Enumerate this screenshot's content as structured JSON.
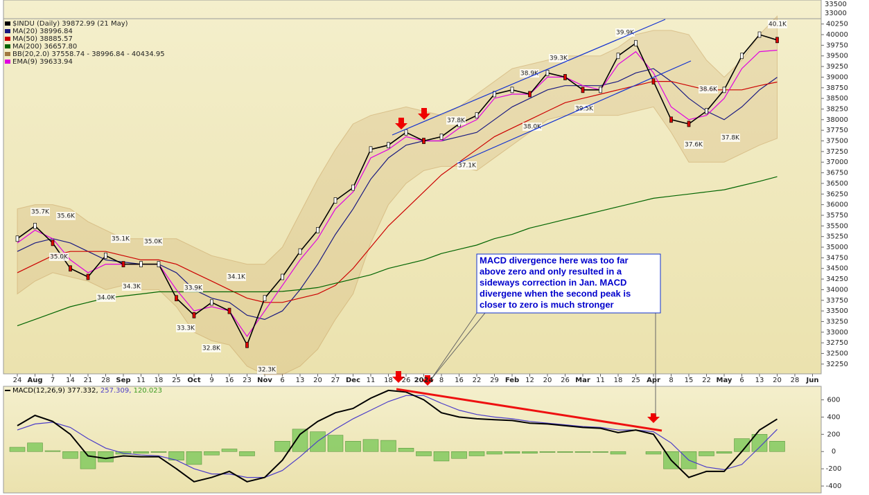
{
  "chart_data": [
    {
      "type": "line",
      "top_panel_yticks": [
        33500,
        33000
      ],
      "categories": [
        "24",
        "Aug",
        "7",
        "14",
        "21",
        "28",
        "Sep",
        "11",
        "18",
        "25",
        "Oct",
        "9",
        "16",
        "23",
        "Nov",
        "6",
        "13",
        "20",
        "27",
        "Dec",
        "11",
        "18",
        "26",
        "2024",
        "8",
        "16",
        "22",
        "29",
        "Feb",
        "12",
        "20",
        "26",
        "Mar",
        "11",
        "18",
        "25",
        "Apr",
        "8",
        "15",
        "22",
        "May",
        "6",
        "13",
        "20",
        "28",
        "Jun"
      ],
      "ylim": [
        32020,
        40375
      ],
      "yticks": [
        32250,
        32500,
        32750,
        33000,
        33250,
        33500,
        33750,
        34000,
        34250,
        34500,
        34750,
        35000,
        35250,
        35500,
        35750,
        36000,
        36250,
        36500,
        36750,
        37000,
        37250,
        37500,
        37750,
        38000,
        38250,
        38500,
        38750,
        39000,
        39250,
        39500,
        39750,
        40000,
        40250
      ],
      "series": [
        {
          "name": "$INDU (Daily) 39872.99 (21 May)",
          "color": "#000000",
          "values": [
            35200,
            35500,
            35100,
            34500,
            34300,
            34800,
            34600,
            34600,
            34600,
            33800,
            33400,
            33700,
            33500,
            32700,
            33800,
            34300,
            34900,
            35400,
            36100,
            36400,
            37300,
            37400,
            37700,
            37500,
            37600,
            37900,
            38100,
            38600,
            38700,
            38600,
            39100,
            39000,
            38700,
            38700,
            39500,
            39800,
            38900,
            38000,
            37900,
            38200,
            38700,
            39500,
            40000,
            39872.99,
            null,
            null
          ]
        },
        {
          "name": "MA(20) 38996.84",
          "color": "#1a1a80",
          "values": [
            34900,
            35100,
            35200,
            35100,
            34900,
            34700,
            34650,
            34600,
            34600,
            34400,
            34000,
            33800,
            33700,
            33400,
            33300,
            33500,
            34000,
            34600,
            35300,
            35900,
            36600,
            37100,
            37400,
            37500,
            37500,
            37600,
            37700,
            38000,
            38300,
            38500,
            38700,
            38800,
            38800,
            38800,
            38900,
            39100,
            39200,
            38900,
            38500,
            38200,
            38000,
            38300,
            38700,
            38996.84,
            null,
            null
          ]
        },
        {
          "name": "MA(50) 38885.57",
          "color": "#cc0000",
          "values": [
            34400,
            34600,
            34800,
            34900,
            34900,
            34900,
            34800,
            34700,
            34700,
            34600,
            34400,
            34200,
            34000,
            33800,
            33700,
            33700,
            33800,
            33900,
            34100,
            34500,
            35000,
            35500,
            35900,
            36300,
            36700,
            37000,
            37300,
            37600,
            37800,
            38000,
            38200,
            38400,
            38500,
            38600,
            38700,
            38800,
            38900,
            38900,
            38800,
            38700,
            38700,
            38700,
            38800,
            38885.57,
            null,
            null
          ]
        },
        {
          "name": "MA(200) 36657.80",
          "color": "#006400",
          "values": [
            33150,
            33300,
            33450,
            33600,
            33700,
            33800,
            33850,
            33900,
            33950,
            33950,
            33950,
            33950,
            33950,
            33950,
            33950,
            33960,
            34000,
            34050,
            34150,
            34250,
            34350,
            34500,
            34600,
            34700,
            34850,
            34950,
            35050,
            35200,
            35300,
            35450,
            35550,
            35650,
            35750,
            35850,
            35950,
            36050,
            36150,
            36200,
            36250,
            36300,
            36350,
            36450,
            36550,
            36657.8,
            null,
            null
          ]
        },
        {
          "name": "EMA(9) 39633.94",
          "color": "#e000e0",
          "values": [
            35100,
            35400,
            35200,
            34700,
            34400,
            34600,
            34600,
            34600,
            34600,
            34000,
            33500,
            33600,
            33500,
            32900,
            33500,
            34100,
            34700,
            35200,
            35900,
            36300,
            37100,
            37300,
            37600,
            37500,
            37500,
            37800,
            38000,
            38500,
            38600,
            38600,
            39000,
            39000,
            38800,
            38700,
            39300,
            39600,
            39100,
            38300,
            38000,
            38100,
            38500,
            39200,
            39600,
            39633.94,
            null,
            null
          ]
        }
      ],
      "bands": {
        "name": "BB(20,2.0) 37558.74 - 38996.84 - 40434.95",
        "color": "#c8a060",
        "upper": [
          35900,
          36000,
          36000,
          35900,
          35600,
          35400,
          35200,
          35200,
          35200,
          35200,
          35000,
          34800,
          34700,
          34600,
          34600,
          35000,
          35800,
          36600,
          37300,
          37900,
          38100,
          38200,
          38300,
          38200,
          38100,
          38300,
          38600,
          38900,
          39200,
          39300,
          39400,
          39500,
          39500,
          39500,
          39700,
          40000,
          40100,
          40100,
          40000,
          39400,
          39000,
          39400,
          40000,
          40434.95,
          null,
          null
        ],
        "lower": [
          33900,
          34200,
          34400,
          34300,
          34200,
          34000,
          34100,
          34000,
          34000,
          33600,
          33000,
          32800,
          32700,
          32200,
          32000,
          32000,
          32200,
          32600,
          33300,
          33900,
          35100,
          36000,
          36500,
          36800,
          36900,
          36900,
          36800,
          37100,
          37400,
          37700,
          38000,
          38100,
          38100,
          38100,
          38100,
          38200,
          38300,
          37700,
          37000,
          37000,
          37000,
          37200,
          37400,
          37558.74,
          null,
          null
        ]
      },
      "annotations": [
        "35.7K",
        "35.6K",
        "35.0K",
        "35.1K",
        "35.0K",
        "34.3K",
        "34.0K",
        "33.9K",
        "33.3K",
        "32.8K",
        "34.1K",
        "32.3K",
        "37.8K",
        "37.1K",
        "38.9K",
        "39.3K",
        "38.0K",
        "39.5K",
        "39.9K",
        "37.6K",
        "38.6K",
        "37.8K",
        "40.1K"
      ],
      "note": [
        "MACD divergence here was too far",
        "above zero and only resulted in a",
        "sideways correction in Jan. MACD",
        "divergene when the second peak is",
        "closer to zero is much stronger"
      ]
    },
    {
      "type": "macd",
      "ylim": [
        -480,
        757
      ],
      "yticks": [
        -400,
        -200,
        0,
        200,
        400,
        600
      ],
      "series": [
        {
          "name": "MACD(12,26,9) 377.332,",
          "color": "#000000",
          "values": [
            300,
            420,
            350,
            200,
            -50,
            -80,
            -50,
            -60,
            -60,
            -200,
            -350,
            -300,
            -230,
            -350,
            -300,
            -100,
            200,
            350,
            450,
            500,
            620,
            710,
            690,
            600,
            450,
            400,
            380,
            370,
            360,
            330,
            320,
            300,
            280,
            270,
            220,
            250,
            200,
            -100,
            -300,
            -230,
            -230,
            0,
            250,
            377.332,
            null,
            null
          ]
        },
        {
          "name": "257.309,",
          "color": "#4b3cc8",
          "values": [
            250,
            320,
            340,
            280,
            150,
            40,
            -20,
            -40,
            -50,
            -100,
            -200,
            -260,
            -260,
            -300,
            -300,
            -220,
            -60,
            120,
            260,
            380,
            480,
            580,
            650,
            650,
            560,
            480,
            430,
            400,
            380,
            350,
            330,
            310,
            290,
            280,
            250,
            250,
            230,
            100,
            -100,
            -180,
            -210,
            -150,
            50,
            257.309,
            null,
            null
          ]
        }
      ],
      "histogram": {
        "name": "120.023",
        "color": "#7cc85a",
        "values": [
          50,
          100,
          10,
          -80,
          -200,
          -120,
          -30,
          -20,
          -10,
          -100,
          -150,
          -40,
          30,
          -50,
          0,
          120,
          260,
          230,
          190,
          120,
          140,
          130,
          40,
          -50,
          -110,
          -80,
          -50,
          -30,
          -20,
          -20,
          -10,
          -10,
          -10,
          -10,
          -30,
          0,
          -30,
          -200,
          -200,
          -50,
          -20,
          150,
          200,
          120.023,
          null,
          null
        ]
      }
    }
  ]
}
